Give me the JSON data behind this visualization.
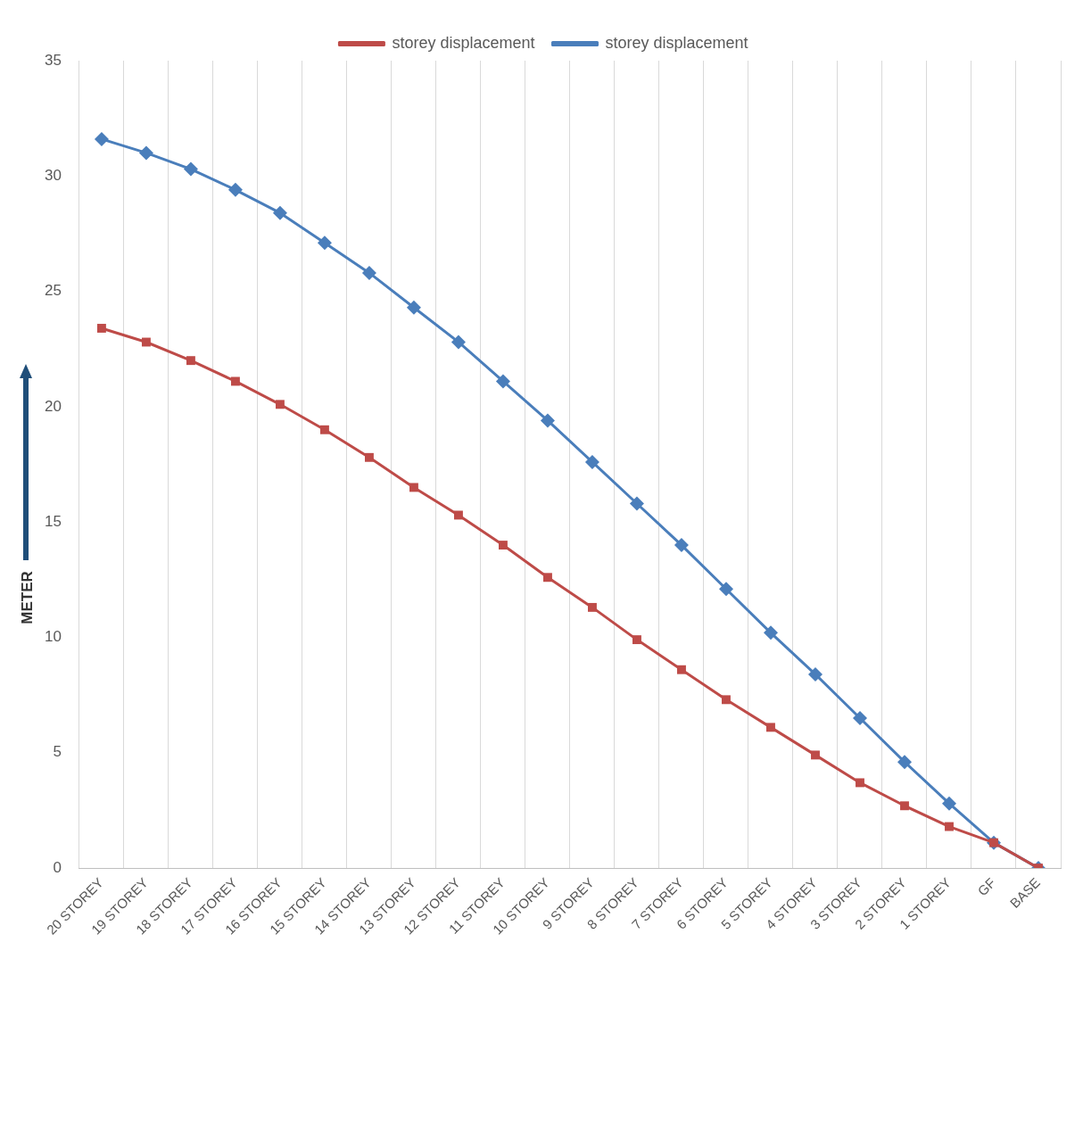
{
  "chart_data": {
    "type": "line",
    "ylabel": "METER",
    "categories": [
      "20 STOREY",
      "19 STOREY",
      "18 STOREY",
      "17 STOREY",
      "16 STOREY",
      "15 STOREY",
      "14 STOREY",
      "13 STOREY",
      "12 STOREY",
      "11 STOREY",
      "10 STOREY",
      "9 STOREY",
      "8 STOREY",
      "7 STOREY",
      "6 STOREY",
      "5 STOREY",
      "4 STOREY",
      "3 STOREY",
      "2 STOREY",
      "1 STOREY",
      "GF",
      "BASE"
    ],
    "series": [
      {
        "name": "storey displacement",
        "color": "#4a7ebb",
        "marker": "diamond",
        "values": [
          31.6,
          31.0,
          30.3,
          29.4,
          28.4,
          27.1,
          25.8,
          24.3,
          22.8,
          21.1,
          19.4,
          17.6,
          15.8,
          14.0,
          12.1,
          10.2,
          8.4,
          6.5,
          4.6,
          2.8,
          1.1,
          0
        ]
      },
      {
        "name": "storey displacement",
        "color": "#be4b48",
        "marker": "square",
        "values": [
          23.4,
          22.8,
          22.0,
          21.1,
          20.1,
          19.0,
          17.8,
          16.5,
          15.3,
          14.0,
          12.6,
          11.3,
          9.9,
          8.6,
          7.3,
          6.1,
          4.9,
          3.7,
          2.7,
          1.8,
          1.1,
          0
        ]
      }
    ],
    "ylim": [
      0,
      35
    ],
    "yticks": [
      0,
      5,
      10,
      15,
      20,
      25,
      30,
      35
    ],
    "grid": "x",
    "legend": "top",
    "line_style": "solid"
  }
}
